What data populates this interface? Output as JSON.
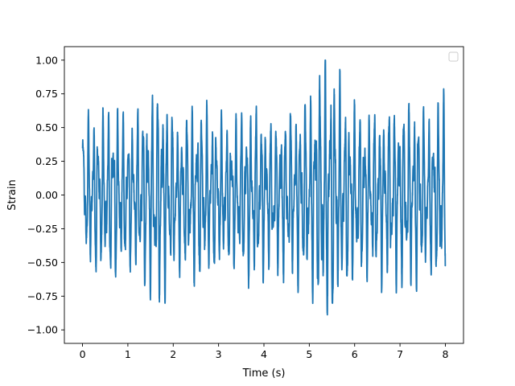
{
  "chart_data": {
    "type": "line",
    "title": "",
    "xlabel": "Time (s)",
    "ylabel": "Strain",
    "xlim": [
      -0.4,
      8.4
    ],
    "ylim": [
      -1.1,
      1.1
    ],
    "xticks": [
      0,
      1,
      2,
      3,
      4,
      5,
      6,
      7,
      8
    ],
    "yticks": [
      -1.0,
      -0.75,
      -0.5,
      -0.25,
      0.0,
      0.25,
      0.5,
      0.75,
      1.0
    ],
    "xtick_labels": [
      "0",
      "1",
      "2",
      "3",
      "4",
      "5",
      "6",
      "7",
      "8"
    ],
    "ytick_labels": [
      "−1.00",
      "−0.75",
      "−0.50",
      "−0.25",
      "0.00",
      "0.25",
      "0.50",
      "0.75",
      "1.00"
    ],
    "grid": false,
    "legend": {
      "placement": "top-right",
      "entries": []
    },
    "series": [
      {
        "color": "#1f77b4",
        "x_start": 0,
        "x_end": 8,
        "envelope_keypoints": [
          [
            0.0,
            0.55
          ],
          [
            0.2,
            0.6
          ],
          [
            0.5,
            0.6
          ],
          [
            0.7,
            0.68
          ],
          [
            1.0,
            0.55
          ],
          [
            1.4,
            0.7
          ],
          [
            1.7,
            0.85
          ],
          [
            2.1,
            0.55
          ],
          [
            2.5,
            0.7
          ],
          [
            2.8,
            0.62
          ],
          [
            3.2,
            0.55
          ],
          [
            3.5,
            0.62
          ],
          [
            3.8,
            0.68
          ],
          [
            4.2,
            0.55
          ],
          [
            4.6,
            0.65
          ],
          [
            5.0,
            0.72
          ],
          [
            5.3,
            1.0
          ],
          [
            5.5,
            1.0
          ],
          [
            5.8,
            0.72
          ],
          [
            6.2,
            0.62
          ],
          [
            6.6,
            0.66
          ],
          [
            7.0,
            0.68
          ],
          [
            7.3,
            0.72
          ],
          [
            7.7,
            0.6
          ],
          [
            8.0,
            0.8
          ]
        ]
      }
    ]
  }
}
